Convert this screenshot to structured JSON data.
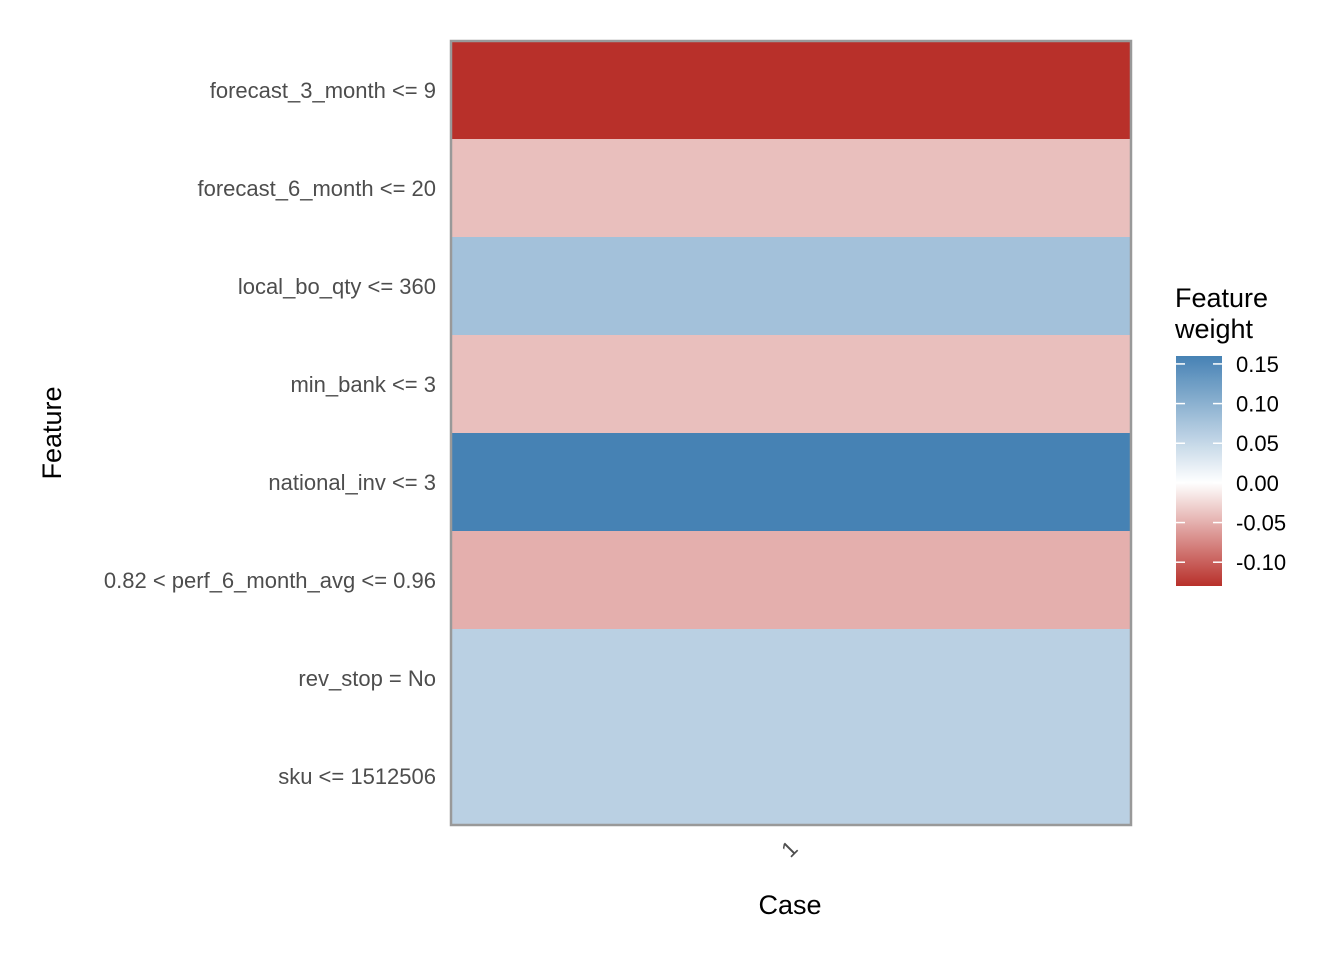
{
  "chart_data": {
    "type": "heatmap",
    "xlabel": "Case",
    "ylabel": "Feature",
    "x_categories": [
      "1"
    ],
    "y_categories": [
      "forecast_3_month <= 9",
      "forecast_6_month <= 20",
      "local_bo_qty <= 360",
      "min_bank <= 3",
      "national_inv <= 3",
      "0.82 < perf_6_month_avg <= 0.96",
      "rev_stop = No",
      "sku <= 1512506"
    ],
    "values": [
      -0.13,
      -0.04,
      0.08,
      -0.04,
      0.16,
      -0.05,
      0.06,
      0.06
    ],
    "legend": {
      "title_line1": "Feature",
      "title_line2": "weight",
      "position": "right",
      "ticks": [
        0.15,
        0.1,
        0.05,
        0.0,
        -0.05,
        -0.1
      ],
      "tick_labels": [
        "0.15",
        "0.10",
        "0.05",
        "0.00",
        "-0.05",
        "-0.10"
      ],
      "range": [
        -0.13,
        0.16
      ]
    },
    "colors": {
      "low": "#B8302A",
      "mid": "#FFFFFF",
      "high": "#4682B4",
      "panel_border": "#999999"
    }
  }
}
